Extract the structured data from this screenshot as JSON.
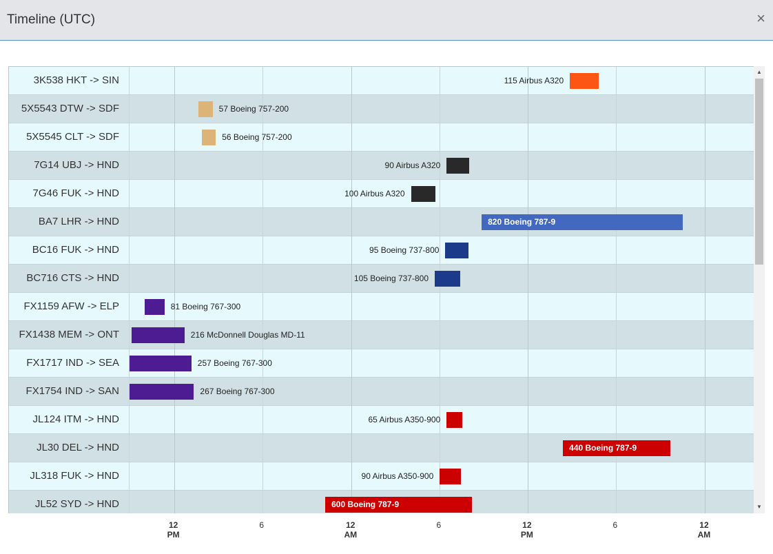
{
  "dialog": {
    "title": "Timeline (UTC)",
    "close_glyph": "×",
    "close_icon": "close-icon"
  },
  "timeline": {
    "rows": [
      {
        "label": "3K538 HKT -> SIN",
        "bar_text": "115 Airbus A320",
        "color": "#fd5514",
        "start": 0.705,
        "end": 0.751,
        "text_inside": false
      },
      {
        "label": "5X5543 DTW -> SDF",
        "bar_text": "57 Boeing 757-200",
        "color": "#dcb477",
        "start": 0.111,
        "end": 0.134,
        "text_inside": false
      },
      {
        "label": "5X5545 CLT -> SDF",
        "bar_text": "56 Boeing 757-200",
        "color": "#dcb477",
        "start": 0.117,
        "end": 0.139,
        "text_inside": false
      },
      {
        "label": "7G14 UBJ -> HND",
        "bar_text": "90 Airbus A320",
        "color": "#292929",
        "start": 0.508,
        "end": 0.544,
        "text_inside": false
      },
      {
        "label": "7G46 FUK -> HND",
        "bar_text": "100 Airbus A320",
        "color": "#292929",
        "start": 0.451,
        "end": 0.49,
        "text_inside": false
      },
      {
        "label": "BA7 LHR -> HND",
        "bar_text": "820 Boeing 787-9",
        "color": "#4269bf",
        "start": 0.564,
        "end": 0.885,
        "text_inside": true
      },
      {
        "label": "BC16 FUK -> HND",
        "bar_text": "95 Boeing 737-800",
        "color": "#1c3a8a",
        "start": 0.506,
        "end": 0.543,
        "text_inside": false
      },
      {
        "label": "BC716 CTS -> HND",
        "bar_text": "105 Boeing 737-800",
        "color": "#1c3a8a",
        "start": 0.489,
        "end": 0.53,
        "text_inside": false
      },
      {
        "label": "FX1159 AFW -> ELP",
        "bar_text": "81 Boeing 767-300",
        "color": "#4d1b92",
        "start": 0.025,
        "end": 0.057,
        "text_inside": false
      },
      {
        "label": "FX1438 MEM -> ONT",
        "bar_text": "216 McDonnell Douglas MD-11",
        "color": "#4d1b92",
        "start": 0.004,
        "end": 0.089,
        "text_inside": false
      },
      {
        "label": "FX1717 IND -> SEA",
        "bar_text": "257 Boeing 767-300",
        "color": "#4d1b92",
        "start": 0.001,
        "end": 0.1,
        "text_inside": false
      },
      {
        "label": "FX1754 IND -> SAN",
        "bar_text": "267 Boeing 767-300",
        "color": "#4d1b92",
        "start": 0.001,
        "end": 0.104,
        "text_inside": false
      },
      {
        "label": "JL124 ITM -> HND",
        "bar_text": "65 Airbus A350-900",
        "color": "#cc0000",
        "start": 0.508,
        "end": 0.533,
        "text_inside": false
      },
      {
        "label": "JL30 DEL -> HND",
        "bar_text": "440 Boeing 787-9",
        "color": "#cc0000",
        "start": 0.694,
        "end": 0.866,
        "text_inside": true
      },
      {
        "label": "JL318 FUK -> HND",
        "bar_text": "90 Airbus A350-900",
        "color": "#cc0000",
        "start": 0.497,
        "end": 0.531,
        "text_inside": false
      },
      {
        "label": "JL52 SYD -> HND",
        "bar_text": "600 Boeing 787-9",
        "color": "#cc0000",
        "start": 0.314,
        "end": 0.549,
        "text_inside": true
      }
    ],
    "axis_ticks": [
      {
        "top": "12",
        "bottom": "PM",
        "pos": 0.0723,
        "bold": true
      },
      {
        "top": "6",
        "bottom": "",
        "pos": 0.2133,
        "bold": false
      },
      {
        "top": "12",
        "bottom": "AM",
        "pos": 0.3555,
        "bold": true
      },
      {
        "top": "6",
        "bottom": "",
        "pos": 0.4965,
        "bold": false
      },
      {
        "top": "12",
        "bottom": "PM",
        "pos": 0.6375,
        "bold": true
      },
      {
        "top": "6",
        "bottom": "",
        "pos": 0.7785,
        "bold": false
      },
      {
        "top": "12",
        "bottom": "AM",
        "pos": 0.9207,
        "bold": true
      }
    ]
  },
  "scrollbar": {
    "up_glyph": "▲",
    "down_glyph": "▼"
  }
}
